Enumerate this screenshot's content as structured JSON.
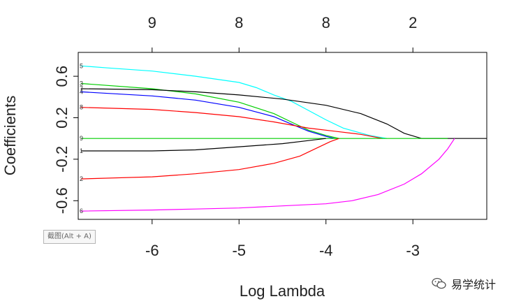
{
  "chart_data": {
    "type": "line",
    "title": "",
    "xlabel": "Log Lambda",
    "ylabel": "Coefficients",
    "xlim": [
      -6.85,
      -2.15
    ],
    "ylim": [
      -0.78,
      0.83
    ],
    "x_ticks": [
      -6,
      -5,
      -4,
      -3
    ],
    "y_ticks": [
      -0.6,
      -0.2,
      0.2,
      0.6
    ],
    "top_ticks": [
      {
        "x": -6,
        "label": "9"
      },
      {
        "x": -5,
        "label": "8"
      },
      {
        "x": -4,
        "label": "8"
      },
      {
        "x": -3,
        "label": "2"
      }
    ],
    "grid": false,
    "series": [
      {
        "name": "5",
        "color": "#00ffff",
        "points": [
          [
            -6.82,
            0.7
          ],
          [
            -6.5,
            0.68
          ],
          [
            -6.0,
            0.65
          ],
          [
            -5.5,
            0.6
          ],
          [
            -5.0,
            0.54
          ],
          [
            -4.8,
            0.49
          ],
          [
            -4.6,
            0.42
          ],
          [
            -4.4,
            0.36
          ],
          [
            -4.2,
            0.27
          ],
          [
            -4.0,
            0.18
          ],
          [
            -3.8,
            0.1
          ],
          [
            -3.5,
            0.03
          ],
          [
            -3.3,
            0.0
          ]
        ]
      },
      {
        "name": "3",
        "color": "#00cd00",
        "points": [
          [
            -6.82,
            0.53
          ],
          [
            -6.0,
            0.48
          ],
          [
            -5.5,
            0.43
          ],
          [
            -5.0,
            0.35
          ],
          [
            -4.6,
            0.24
          ],
          [
            -4.4,
            0.16
          ],
          [
            -4.2,
            0.08
          ],
          [
            -4.0,
            0.03
          ],
          [
            -3.85,
            0.0
          ]
        ]
      },
      {
        "name": "4",
        "color": "#0000ff",
        "points": [
          [
            -6.82,
            0.45
          ],
          [
            -6.0,
            0.41
          ],
          [
            -5.5,
            0.37
          ],
          [
            -5.0,
            0.3
          ],
          [
            -4.6,
            0.21
          ],
          [
            -4.4,
            0.14
          ],
          [
            -4.2,
            0.07
          ],
          [
            -4.0,
            0.02
          ],
          [
            -3.9,
            0.0
          ]
        ]
      },
      {
        "name": "7",
        "color": "#000000",
        "points": [
          [
            -6.82,
            0.48
          ],
          [
            -6.0,
            0.47
          ],
          [
            -5.5,
            0.45
          ],
          [
            -5.0,
            0.42
          ],
          [
            -4.5,
            0.38
          ],
          [
            -4.0,
            0.32
          ],
          [
            -3.6,
            0.24
          ],
          [
            -3.3,
            0.14
          ],
          [
            -3.1,
            0.05
          ],
          [
            -2.9,
            0.0
          ],
          [
            -2.15,
            0.0
          ]
        ]
      },
      {
        "name": "8",
        "color": "#ff0000",
        "points": [
          [
            -6.82,
            0.3
          ],
          [
            -6.0,
            0.28
          ],
          [
            -5.5,
            0.25
          ],
          [
            -5.0,
            0.21
          ],
          [
            -4.6,
            0.16
          ],
          [
            -4.2,
            0.1
          ],
          [
            -3.9,
            0.07
          ],
          [
            -3.6,
            0.04
          ],
          [
            -3.35,
            0.0
          ]
        ]
      },
      {
        "name": "9",
        "color": "#00cd00",
        "points": [
          [
            -6.82,
            0.0
          ],
          [
            -2.6,
            0.0
          ]
        ]
      },
      {
        "name": "1",
        "color": "#000000",
        "points": [
          [
            -6.82,
            -0.12
          ],
          [
            -6.0,
            -0.12
          ],
          [
            -5.5,
            -0.11
          ],
          [
            -5.0,
            -0.08
          ],
          [
            -4.5,
            -0.05
          ],
          [
            -4.2,
            -0.02
          ],
          [
            -4.0,
            0.0
          ]
        ]
      },
      {
        "name": "2",
        "color": "#ff0000",
        "points": [
          [
            -6.82,
            -0.39
          ],
          [
            -6.0,
            -0.37
          ],
          [
            -5.5,
            -0.34
          ],
          [
            -5.0,
            -0.3
          ],
          [
            -4.6,
            -0.24
          ],
          [
            -4.3,
            -0.17
          ],
          [
            -4.1,
            -0.09
          ],
          [
            -3.95,
            -0.03
          ],
          [
            -3.85,
            0.0
          ]
        ]
      },
      {
        "name": "6",
        "color": "#ff00ff",
        "points": [
          [
            -6.82,
            -0.7
          ],
          [
            -6.0,
            -0.69
          ],
          [
            -5.5,
            -0.68
          ],
          [
            -5.0,
            -0.67
          ],
          [
            -4.5,
            -0.65
          ],
          [
            -4.0,
            -0.63
          ],
          [
            -3.7,
            -0.6
          ],
          [
            -3.4,
            -0.54
          ],
          [
            -3.1,
            -0.44
          ],
          [
            -2.9,
            -0.34
          ],
          [
            -2.7,
            -0.2
          ],
          [
            -2.6,
            -0.1
          ],
          [
            -2.52,
            0.0
          ]
        ]
      }
    ]
  },
  "overlay": {
    "screenshot_tip": "截图(Alt + A)",
    "watermark": "易学统计"
  }
}
